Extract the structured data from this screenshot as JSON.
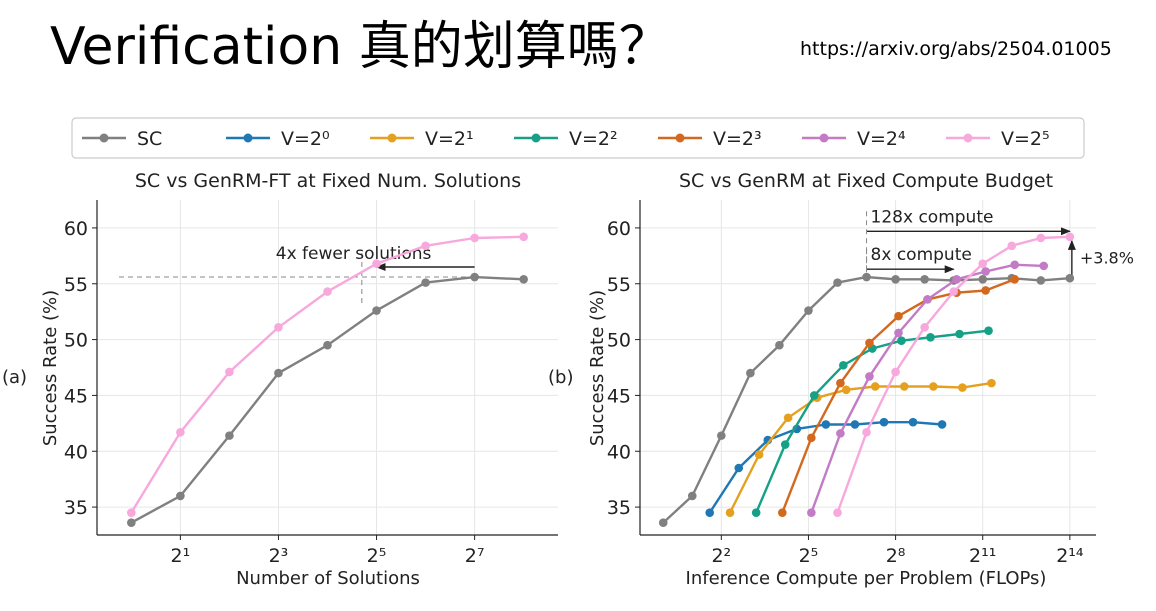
{
  "slide": {
    "title": "Verification 真的划算嗎？",
    "url": "https://arxiv.org/abs/2504.01005"
  },
  "legend": {
    "entries": [
      {
        "label": "SC",
        "color": "#808080"
      },
      {
        "label": "V=2⁰",
        "color": "#1f77b4"
      },
      {
        "label": "V=2¹",
        "color": "#e6a020"
      },
      {
        "label": "V=2²",
        "color": "#16a085"
      },
      {
        "label": "V=2³",
        "color": "#d2691e"
      },
      {
        "label": "V=2⁴",
        "color": "#c27bc4"
      },
      {
        "label": "V=2⁵",
        "color": "#f7a8dd"
      }
    ]
  },
  "chart_data": [
    {
      "type": "line",
      "panel_label": "(a)",
      "title": "SC vs GenRM-FT at Fixed Num. Solutions",
      "xlabel": "Number of Solutions",
      "ylabel": "Success Rate (%)",
      "x_scale": "log2",
      "xlim_log2": [
        -0.7,
        8.7
      ],
      "ylim": [
        32.5,
        62.5
      ],
      "x_ticks": [
        {
          "log2": 1,
          "label": "2¹"
        },
        {
          "log2": 3,
          "label": "2³"
        },
        {
          "log2": 5,
          "label": "2⁵"
        },
        {
          "log2": 7,
          "label": "2⁷"
        }
      ],
      "y_ticks": [
        35,
        40,
        45,
        50,
        55,
        60
      ],
      "grid": true,
      "series": [
        {
          "name": "SC",
          "color": "#808080",
          "points": [
            [
              0,
              33.6
            ],
            [
              1,
              36.0
            ],
            [
              2,
              41.4
            ],
            [
              3,
              47.0
            ],
            [
              4,
              49.5
            ],
            [
              5,
              52.6
            ],
            [
              6,
              55.1
            ],
            [
              7,
              55.6
            ],
            [
              8,
              55.4
            ]
          ]
        },
        {
          "name": "V=2⁵",
          "color": "#f7a8dd",
          "points": [
            [
              0,
              34.5
            ],
            [
              1,
              41.7
            ],
            [
              2,
              47.1
            ],
            [
              3,
              51.1
            ],
            [
              4,
              54.3
            ],
            [
              5,
              56.8
            ],
            [
              6,
              58.4
            ],
            [
              7,
              59.1
            ],
            [
              8,
              59.2
            ]
          ]
        }
      ],
      "annotations": [
        {
          "text": "4x fewer solutions",
          "from_log2": 7,
          "to_log2": 5,
          "y": 56.5,
          "dashed_y": 55.6,
          "dashed_x_log2": 4.7
        }
      ]
    },
    {
      "type": "line",
      "panel_label": "(b)",
      "title": "SC vs GenRM at Fixed Compute Budget",
      "xlabel": "Inference Compute per Problem (FLOPs)",
      "ylabel": "Success Rate (%)",
      "x_scale": "log2",
      "xlim_log2": [
        -0.8,
        14.9
      ],
      "ylim": [
        32.5,
        62.5
      ],
      "x_ticks": [
        {
          "log2": 2,
          "label": "2²"
        },
        {
          "log2": 5,
          "label": "2⁵"
        },
        {
          "log2": 8,
          "label": "2⁸"
        },
        {
          "log2": 11,
          "label": "2¹¹"
        },
        {
          "log2": 14,
          "label": "2¹⁴"
        }
      ],
      "y_ticks": [
        35,
        40,
        45,
        50,
        55,
        60
      ],
      "grid": true,
      "series": [
        {
          "name": "SC",
          "color": "#808080",
          "points": [
            [
              0,
              33.6
            ],
            [
              1,
              36.0
            ],
            [
              2,
              41.4
            ],
            [
              3,
              47.0
            ],
            [
              4,
              49.5
            ],
            [
              5,
              52.6
            ],
            [
              6,
              55.1
            ],
            [
              7,
              55.6
            ],
            [
              8,
              55.4
            ],
            [
              9,
              55.4
            ],
            [
              10,
              55.3
            ],
            [
              11,
              55.4
            ],
            [
              12,
              55.5
            ],
            [
              13,
              55.3
            ],
            [
              14,
              55.5
            ]
          ]
        },
        {
          "name": "V=2⁰",
          "color": "#1f77b4",
          "points": [
            [
              1.6,
              34.5
            ],
            [
              2.6,
              38.5
            ],
            [
              3.6,
              41.0
            ],
            [
              4.6,
              42.0
            ],
            [
              5.6,
              42.4
            ],
            [
              6.6,
              42.4
            ],
            [
              7.6,
              42.6
            ],
            [
              8.6,
              42.6
            ],
            [
              9.6,
              42.4
            ]
          ]
        },
        {
          "name": "V=2¹",
          "color": "#e6a020",
          "points": [
            [
              2.3,
              34.5
            ],
            [
              3.3,
              39.7
            ],
            [
              4.3,
              43.0
            ],
            [
              5.3,
              44.8
            ],
            [
              6.3,
              45.5
            ],
            [
              7.3,
              45.8
            ],
            [
              8.3,
              45.8
            ],
            [
              9.3,
              45.8
            ],
            [
              10.3,
              45.7
            ],
            [
              11.3,
              46.1
            ]
          ]
        },
        {
          "name": "V=2²",
          "color": "#16a085",
          "points": [
            [
              3.2,
              34.5
            ],
            [
              4.2,
              40.6
            ],
            [
              5.2,
              45.0
            ],
            [
              6.2,
              47.7
            ],
            [
              7.2,
              49.2
            ],
            [
              8.2,
              49.9
            ],
            [
              9.2,
              50.2
            ],
            [
              10.2,
              50.5
            ],
            [
              11.2,
              50.8
            ]
          ]
        },
        {
          "name": "V=2³",
          "color": "#d2691e",
          "points": [
            [
              4.1,
              34.5
            ],
            [
              5.1,
              41.2
            ],
            [
              6.1,
              46.1
            ],
            [
              7.1,
              49.7
            ],
            [
              8.1,
              52.1
            ],
            [
              9.1,
              53.6
            ],
            [
              10.1,
              54.2
            ],
            [
              11.1,
              54.4
            ],
            [
              12.1,
              55.4
            ]
          ]
        },
        {
          "name": "V=2⁴",
          "color": "#c27bc4",
          "points": [
            [
              5.1,
              34.5
            ],
            [
              6.1,
              41.6
            ],
            [
              7.1,
              46.7
            ],
            [
              8.1,
              50.6
            ],
            [
              9.1,
              53.6
            ],
            [
              10.1,
              55.4
            ],
            [
              11.1,
              56.1
            ],
            [
              12.1,
              56.7
            ],
            [
              13.1,
              56.6
            ]
          ]
        },
        {
          "name": "V=2⁵",
          "color": "#f7a8dd",
          "points": [
            [
              6.0,
              34.5
            ],
            [
              7.0,
              41.7
            ],
            [
              8.0,
              47.1
            ],
            [
              9.0,
              51.1
            ],
            [
              10.0,
              54.3
            ],
            [
              11.0,
              56.8
            ],
            [
              12.0,
              58.4
            ],
            [
              13.0,
              59.1
            ],
            [
              14.0,
              59.2
            ]
          ]
        }
      ],
      "annotations": [
        {
          "text": "128x compute",
          "from_log2": 7,
          "to_log2": 14,
          "y": 59.7
        },
        {
          "text": "8x compute",
          "from_log2": 7,
          "to_log2": 10,
          "y": 56.3
        },
        {
          "text": "+3.8%",
          "x_log2": 14,
          "from_y": 55.5,
          "to_y": 59.2
        }
      ]
    }
  ]
}
